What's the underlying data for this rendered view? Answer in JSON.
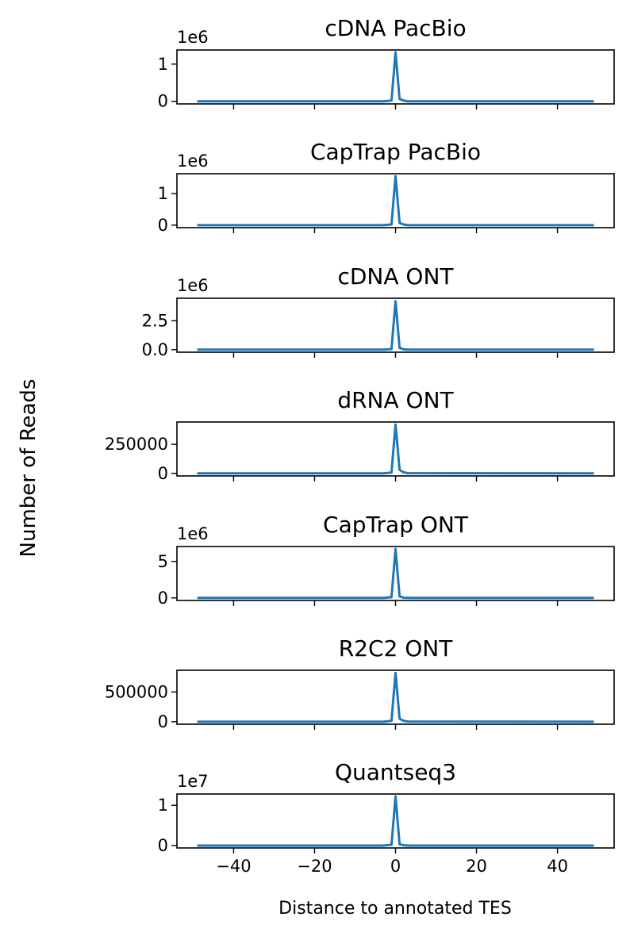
{
  "figure": {
    "ylabel": "Number of Reads",
    "xlabel": "Distance to annotated TES",
    "line_color": "#1f77b4"
  },
  "chart_data": [
    {
      "type": "line",
      "title": "cDNA PacBio",
      "offset_text": "1e6",
      "x": [
        -49,
        -3,
        -1,
        0,
        1,
        2,
        3,
        49
      ],
      "y": [
        0,
        0,
        0.02,
        1.32,
        0.06,
        0.02,
        0,
        0
      ],
      "xlim": [
        -54,
        54
      ],
      "ylim": [
        -0.07,
        1.38
      ],
      "yticks": [
        0,
        1
      ],
      "ytick_labels": [
        "0",
        "1"
      ],
      "xticks": [
        -40,
        -20,
        0,
        20,
        40
      ],
      "xtick_labels": [
        "−40",
        "−20",
        "0",
        "20",
        "40"
      ],
      "show_xtick_labels": false
    },
    {
      "type": "line",
      "title": "CapTrap PacBio",
      "offset_text": "1e6",
      "x": [
        -49,
        -3,
        -1,
        0,
        1,
        2,
        3,
        49
      ],
      "y": [
        0,
        0,
        0.02,
        1.55,
        0.07,
        0.02,
        0,
        0
      ],
      "xlim": [
        -54,
        54
      ],
      "ylim": [
        -0.08,
        1.63
      ],
      "yticks": [
        0,
        1
      ],
      "ytick_labels": [
        "0",
        "1"
      ],
      "xticks": [
        -40,
        -20,
        0,
        20,
        40
      ],
      "xtick_labels": [
        "−40",
        "−20",
        "0",
        "20",
        "40"
      ],
      "show_xtick_labels": false
    },
    {
      "type": "line",
      "title": "cDNA ONT",
      "offset_text": "1e6",
      "x": [
        -49,
        -3,
        -1,
        0,
        1,
        2,
        3,
        49
      ],
      "y": [
        0,
        0,
        0.05,
        4.2,
        0.15,
        0.03,
        0,
        0
      ],
      "xlim": [
        -54,
        54
      ],
      "ylim": [
        -0.22,
        4.45
      ],
      "yticks": [
        0,
        2.5
      ],
      "ytick_labels": [
        "0.0",
        "2.5"
      ],
      "xticks": [
        -40,
        -20,
        0,
        20,
        40
      ],
      "xtick_labels": [
        "−40",
        "−20",
        "0",
        "20",
        "40"
      ],
      "show_xtick_labels": false
    },
    {
      "type": "line",
      "title": "dRNA ONT",
      "offset_text": "",
      "x": [
        -49,
        -3,
        -1,
        0,
        1,
        2,
        3,
        49
      ],
      "y": [
        0,
        0,
        7000,
        420000,
        30000,
        9000,
        2000,
        0
      ],
      "xlim": [
        -54,
        54
      ],
      "ylim": [
        -22000,
        442000
      ],
      "yticks": [
        0,
        250000
      ],
      "ytick_labels": [
        "0",
        "250000"
      ],
      "xticks": [
        -40,
        -20,
        0,
        20,
        40
      ],
      "xtick_labels": [
        "−40",
        "−20",
        "0",
        "20",
        "40"
      ],
      "show_xtick_labels": false
    },
    {
      "type": "line",
      "title": "CapTrap ONT",
      "offset_text": "1e6",
      "x": [
        -49,
        -3,
        -1,
        0,
        1,
        2,
        3,
        49
      ],
      "y": [
        0,
        0,
        0.1,
        6.7,
        0.2,
        0.03,
        0,
        0
      ],
      "xlim": [
        -54,
        54
      ],
      "ylim": [
        -0.35,
        7.05
      ],
      "yticks": [
        0,
        5
      ],
      "ytick_labels": [
        "0",
        "5"
      ],
      "xticks": [
        -40,
        -20,
        0,
        20,
        40
      ],
      "xtick_labels": [
        "−40",
        "−20",
        "0",
        "20",
        "40"
      ],
      "show_xtick_labels": false
    },
    {
      "type": "line",
      "title": "R2C2 ONT",
      "offset_text": "",
      "x": [
        -49,
        -3,
        -1,
        0,
        1,
        2,
        3,
        49
      ],
      "y": [
        0,
        0,
        15000,
        820000,
        50000,
        15000,
        3000,
        0
      ],
      "xlim": [
        -54,
        54
      ],
      "ylim": [
        -42000,
        865000
      ],
      "yticks": [
        0,
        500000
      ],
      "ytick_labels": [
        "0",
        "500000"
      ],
      "xticks": [
        -40,
        -20,
        0,
        20,
        40
      ],
      "xtick_labels": [
        "−40",
        "−20",
        "0",
        "20",
        "40"
      ],
      "show_xtick_labels": false
    },
    {
      "type": "line",
      "title": "Quantseq3",
      "offset_text": "1e7",
      "x": [
        -49,
        -3,
        -1,
        0,
        1,
        2,
        3,
        49
      ],
      "y": [
        0,
        0,
        0.02,
        1.22,
        0.03,
        0.01,
        0,
        0
      ],
      "xlim": [
        -54,
        54
      ],
      "ylim": [
        -0.06,
        1.28
      ],
      "yticks": [
        0,
        1
      ],
      "ytick_labels": [
        "0",
        "1"
      ],
      "xticks": [
        -40,
        -20,
        0,
        20,
        40
      ],
      "xtick_labels": [
        "−40",
        "−20",
        "0",
        "20",
        "40"
      ],
      "show_xtick_labels": true
    }
  ]
}
